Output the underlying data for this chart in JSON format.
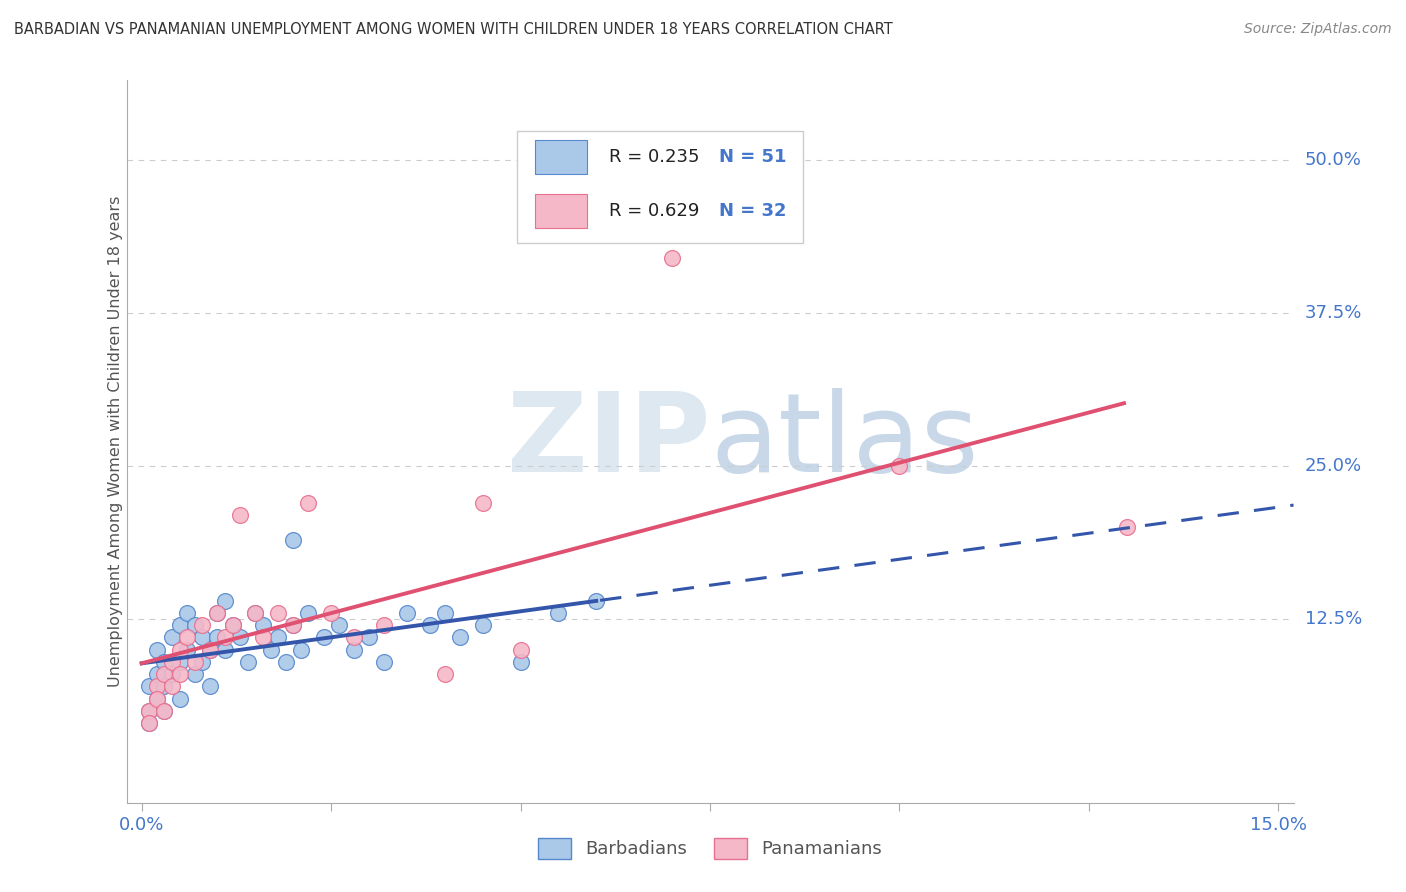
{
  "title": "BARBADIAN VS PANAMANIAN UNEMPLOYMENT AMONG WOMEN WITH CHILDREN UNDER 18 YEARS CORRELATION CHART",
  "source": "Source: ZipAtlas.com",
  "ylabel": "Unemployment Among Women with Children Under 18 years",
  "xlim": [
    -0.002,
    0.152
  ],
  "ylim": [
    -0.025,
    0.565
  ],
  "xtick_positions": [
    0.0,
    0.025,
    0.05,
    0.075,
    0.1,
    0.125,
    0.15
  ],
  "ytick_positions": [
    0.125,
    0.25,
    0.375,
    0.5
  ],
  "ytick_labels": [
    "12.5%",
    "25.0%",
    "37.5%",
    "50.0%"
  ],
  "blue_scatter_color": "#aac8e8",
  "blue_edge_color": "#5588cc",
  "blue_line_color": "#3355aa",
  "pink_scatter_color": "#f5b8c8",
  "pink_edge_color": "#e87090",
  "pink_line_color": "#e05070",
  "grid_color": "#cccccc",
  "axis_color": "#aaaaaa",
  "text_color": "#333333",
  "source_color": "#888888",
  "blue_tick_color": "#4477cc",
  "watermark_color": "#dde8f0"
}
